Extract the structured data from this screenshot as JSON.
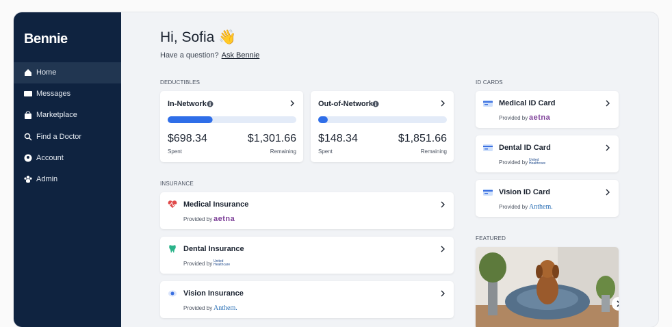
{
  "sidebar": {
    "logo": "Bennie",
    "nav": [
      {
        "label": "Home",
        "active": true
      },
      {
        "label": "Messages",
        "active": false
      },
      {
        "label": "Marketplace",
        "active": false
      },
      {
        "label": "Find a Doctor",
        "active": false
      },
      {
        "label": "Account",
        "active": false
      },
      {
        "label": "Admin",
        "active": false
      }
    ]
  },
  "header": {
    "greeting": "Hi, Sofia 👋",
    "question": "Have a question?",
    "link": "Ask Bennie"
  },
  "deductibles": {
    "heading": "DEDUCTIBLES",
    "cards": [
      {
        "title": "In-Network",
        "spent": {
          "value": 698.34,
          "label": "$698.34"
        },
        "spent_caption": "Spent",
        "remaining": {
          "value": 1301.66,
          "label": "$1,301.66"
        },
        "remaining_caption": "Remaining"
      },
      {
        "title": "Out-of-Network",
        "spent": {
          "value": 148.34,
          "label": "$148.34"
        },
        "spent_caption": "Spent",
        "remaining": {
          "value": 1851.66,
          "label": "$1,851.66"
        },
        "remaining_caption": "Remaining"
      }
    ]
  },
  "insurance": {
    "heading": "INSURANCE",
    "cards": [
      {
        "title": "Medical Insurance",
        "provided_by": "Provided by",
        "provider": "aetna"
      },
      {
        "title": "Dental Insurance",
        "provided_by": "Provided by",
        "provider": "United Healthcare"
      },
      {
        "title": "Vision Insurance",
        "provided_by": "Provided by",
        "provider": "Anthem."
      }
    ]
  },
  "id_cards": {
    "heading": "ID CARDS",
    "cards": [
      {
        "title": "Medical ID Card",
        "provided_by": "Provided by",
        "provider": "aetna"
      },
      {
        "title": "Dental ID Card",
        "provided_by": "Provided by",
        "provider": "United Healthcare"
      },
      {
        "title": "Vision ID Card",
        "provided_by": "Provided by",
        "provider": "Anthem."
      }
    ]
  },
  "featured": {
    "heading": "FEATURED"
  }
}
